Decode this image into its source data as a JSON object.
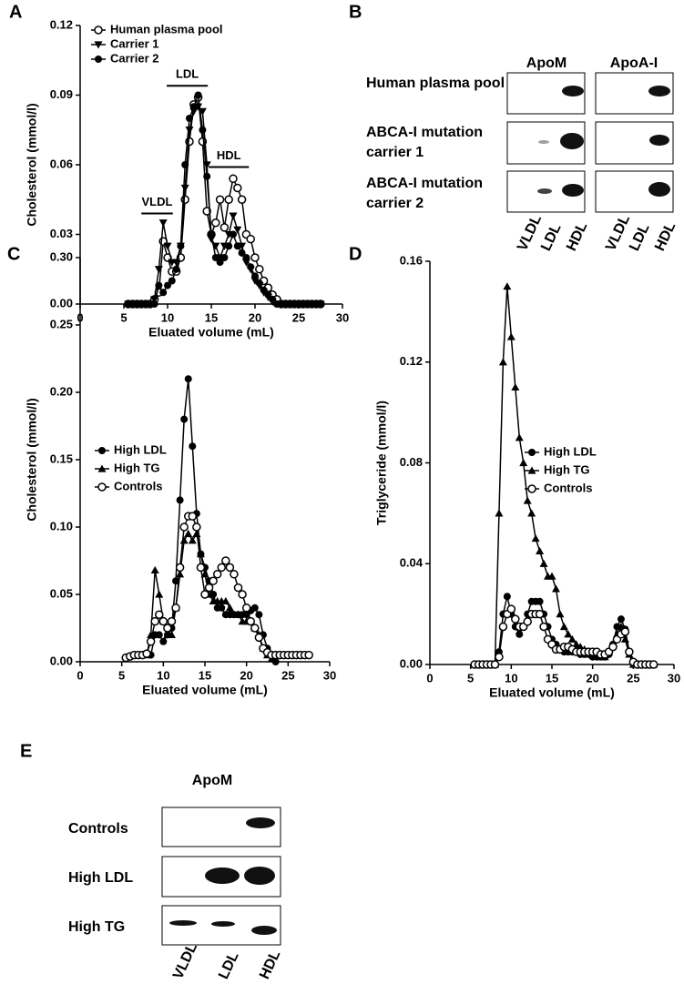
{
  "panel_labels": [
    "A",
    "B",
    "C",
    "D",
    "E"
  ],
  "chart_data": [
    {
      "type": "line",
      "xlabel": "Eluated volume (mL)",
      "ylabel": "Cholesterol (mmol/l)",
      "x": [
        5.5,
        6,
        6.5,
        7,
        7.5,
        8,
        8.5,
        9,
        9.5,
        10,
        10.5,
        11,
        11.5,
        12,
        12.5,
        13,
        13.5,
        14,
        14.5,
        15,
        15.5,
        16,
        16.5,
        17,
        17.5,
        18,
        18.5,
        19,
        19.5,
        20,
        20.5,
        21,
        21.5,
        22,
        22.5,
        23,
        23.5,
        24,
        24.5,
        25,
        25.5,
        26,
        26.5,
        27,
        27.5
      ],
      "xlim": [
        0,
        30
      ],
      "xticks": [
        0,
        5,
        10,
        15,
        20,
        25,
        30
      ],
      "ylim": [
        0,
        0.12
      ],
      "yticks": [
        {
          "value": 0,
          "label": "0.00"
        },
        0.03,
        0.06,
        0.09,
        0.12
      ],
      "annotations": [
        "VLDL",
        "LDL",
        "HDL"
      ],
      "series": [
        {
          "name": "Human plasma pool",
          "color": "#000000",
          "marker": "open-circle",
          "values": [
            0,
            0,
            0,
            0,
            0,
            0,
            0.002,
            0.005,
            0.027,
            0.02,
            0.014,
            0.014,
            0.02,
            0.045,
            0.07,
            0.086,
            0.089,
            0.07,
            0.04,
            0.03,
            0.035,
            0.045,
            0.033,
            0.045,
            0.054,
            0.05,
            0.045,
            0.03,
            0.028,
            0.02,
            0.015,
            0.01,
            0.007,
            0.004,
            0.002,
            0,
            0,
            0,
            0,
            0,
            0,
            0,
            0,
            0,
            0
          ]
        },
        {
          "name": "Carrier 1",
          "color": "#000000",
          "marker": "triangle-down",
          "values": [
            0,
            0,
            0,
            0,
            0,
            0,
            0.002,
            0.015,
            0.035,
            0.025,
            0.018,
            0.018,
            0.025,
            0.05,
            0.075,
            0.083,
            0.085,
            0.083,
            0.06,
            0.028,
            0.025,
            0.02,
            0.025,
            0.03,
            0.038,
            0.032,
            0.025,
            0.018,
            0.015,
            0.01,
            0.008,
            0.005,
            0.003,
            0.001,
            0,
            0,
            0,
            0,
            0,
            0,
            0,
            0,
            0,
            0,
            0
          ]
        },
        {
          "name": "Carrier 2",
          "color": "#000000",
          "marker": "circle",
          "values": [
            0,
            0,
            0,
            0,
            0,
            0,
            0,
            0.008,
            0.005,
            0.008,
            0.01,
            0.015,
            0.025,
            0.06,
            0.08,
            0.085,
            0.09,
            0.075,
            0.055,
            0.03,
            0.02,
            0.018,
            0.02,
            0.025,
            0.03,
            0.025,
            0.022,
            0.02,
            0.016,
            0.012,
            0.009,
            0.006,
            0.004,
            0.002,
            0,
            0,
            0,
            0,
            0,
            0,
            0,
            0,
            0,
            0,
            0
          ]
        }
      ]
    },
    {
      "type": "line",
      "xlabel": "Eluated volume (mL)",
      "ylabel": "Cholesterol (mmol/l)",
      "x": [
        5.5,
        6,
        6.5,
        7,
        7.5,
        8,
        8.5,
        9,
        9.5,
        10,
        10.5,
        11,
        11.5,
        12,
        12.5,
        13,
        13.5,
        14,
        14.5,
        15,
        15.5,
        16,
        16.5,
        17,
        17.5,
        18,
        18.5,
        19,
        19.5,
        20,
        20.5,
        21,
        21.5,
        22,
        22.5,
        23,
        23.5,
        24,
        24.5,
        25,
        25.5,
        26,
        26.5,
        27,
        27.5
      ],
      "xlim": [
        0,
        30
      ],
      "xticks": [
        0,
        5,
        10,
        15,
        20,
        25,
        30
      ],
      "ylim": [
        0,
        0.3
      ],
      "yticks": [
        {
          "value": 0,
          "label": "0.00"
        },
        0.05,
        {
          "value": 0.1,
          "label": "0.10"
        },
        0.15,
        {
          "value": 0.2,
          "label": "0.20"
        },
        0.25,
        {
          "value": 0.3,
          "label": "0.30"
        }
      ],
      "series": [
        {
          "name": "High LDL",
          "color": "#000000",
          "marker": "circle",
          "values": [
            null,
            null,
            null,
            null,
            null,
            null,
            0.005,
            0.02,
            0.02,
            0.015,
            0.02,
            0.025,
            0.06,
            0.12,
            0.18,
            0.21,
            0.16,
            0.11,
            0.08,
            0.07,
            0.06,
            0.05,
            0.04,
            0.04,
            0.035,
            0.035,
            0.035,
            0.035,
            0.035,
            0.035,
            0.038,
            0.04,
            0.035,
            0.02,
            0.01,
            0.005,
            0,
            null,
            null,
            null,
            null,
            null,
            null,
            null,
            null
          ]
        },
        {
          "name": "High TG",
          "color": "#000000",
          "marker": "triangle-up",
          "values": [
            null,
            null,
            null,
            null,
            null,
            0.005,
            0.02,
            0.068,
            0.05,
            0.03,
            0.02,
            0.02,
            0.04,
            0.065,
            0.09,
            0.095,
            0.09,
            0.095,
            0.08,
            0.065,
            0.05,
            0.045,
            0.045,
            0.045,
            0.045,
            0.04,
            0.035,
            0.035,
            0.03,
            0.03,
            0.03,
            0.025,
            0.02,
            0.01,
            0.005,
            0.002,
            null,
            null,
            null,
            null,
            null,
            null,
            null,
            null,
            null
          ]
        },
        {
          "name": "Controls",
          "color": "#000000",
          "marker": "open-circle",
          "values": [
            0.003,
            0.004,
            0.005,
            0.005,
            0.005,
            0.006,
            0.015,
            0.03,
            0.035,
            0.03,
            0.025,
            0.03,
            0.04,
            0.07,
            0.1,
            0.108,
            0.108,
            0.1,
            0.07,
            0.05,
            0.055,
            0.06,
            0.065,
            0.07,
            0.075,
            0.07,
            0.065,
            0.055,
            0.05,
            0.04,
            0.03,
            0.025,
            0.018,
            0.01,
            0.007,
            0.005,
            0.005,
            0.005,
            0.005,
            0.005,
            0.005,
            0.005,
            0.005,
            0.005,
            0.005
          ]
        }
      ]
    },
    {
      "type": "line",
      "xlabel": "Eluated volume (mL)",
      "ylabel": "Triglyceride (mmol/l)",
      "x": [
        5.5,
        6,
        6.5,
        7,
        7.5,
        8,
        8.5,
        9,
        9.5,
        10,
        10.5,
        11,
        11.5,
        12,
        12.5,
        13,
        13.5,
        14,
        14.5,
        15,
        15.5,
        16,
        16.5,
        17,
        17.5,
        18,
        18.5,
        19,
        19.5,
        20,
        20.5,
        21,
        21.5,
        22,
        22.5,
        23,
        23.5,
        24,
        24.5,
        25,
        25.5,
        26,
        26.5,
        27,
        27.5
      ],
      "xlim": [
        0,
        30
      ],
      "xticks": [
        0,
        5,
        10,
        15,
        20,
        25,
        30
      ],
      "ylim": [
        0,
        0.16
      ],
      "yticks": [
        {
          "value": 0,
          "label": "0.00"
        },
        0.04,
        0.08,
        0.12,
        0.16
      ],
      "series": [
        {
          "name": "High LDL",
          "color": "#000000",
          "marker": "circle",
          "values": [
            0,
            0,
            0,
            0,
            0,
            0,
            0.005,
            0.02,
            0.027,
            0.02,
            0.015,
            0.012,
            0.015,
            0.02,
            0.025,
            0.025,
            0.025,
            0.02,
            0.015,
            0.01,
            0.008,
            0.006,
            0.005,
            0.005,
            0.005,
            0.005,
            0.004,
            0.004,
            0.004,
            0.003,
            0.003,
            0.003,
            0.003,
            0.004,
            0.008,
            0.015,
            0.018,
            0.014,
            0.005,
            0.001,
            0,
            0,
            0,
            0,
            0
          ]
        },
        {
          "name": "High TG",
          "color": "#000000",
          "marker": "triangle-up",
          "values": [
            0,
            0,
            0,
            0,
            0,
            0,
            0.06,
            0.12,
            0.15,
            0.13,
            0.11,
            0.09,
            0.08,
            0.065,
            0.06,
            0.05,
            0.045,
            0.04,
            0.035,
            0.035,
            0.03,
            0.02,
            0.015,
            0.012,
            0.01,
            0.008,
            0.007,
            0.006,
            0.005,
            0.004,
            0.004,
            0.003,
            0.003,
            0.005,
            0.008,
            0.012,
            0.015,
            0.01,
            0.004,
            0,
            0,
            0,
            0,
            0,
            0
          ]
        },
        {
          "name": "Controls",
          "color": "#000000",
          "marker": "open-circle",
          "values": [
            0,
            0,
            0,
            0,
            0,
            0,
            0.003,
            0.015,
            0.02,
            0.022,
            0.018,
            0.015,
            0.015,
            0.017,
            0.02,
            0.02,
            0.02,
            0.015,
            0.01,
            0.008,
            0.006,
            0.006,
            0.007,
            0.007,
            0.006,
            0.005,
            0.005,
            0.005,
            0.005,
            0.005,
            0.005,
            0.004,
            0.004,
            0.005,
            0.007,
            0.01,
            0.012,
            0.013,
            0.005,
            0.001,
            0,
            0,
            0,
            0,
            0
          ]
        }
      ]
    }
  ],
  "blots": [
    {
      "columns": [
        "ApoM",
        "ApoA-I"
      ],
      "rows": [
        "Human plasma pool",
        "ABCA-I mutation carrier 1",
        "ABCA-I mutation carrier 2"
      ],
      "lanes": [
        "VLDL",
        "LDL",
        "HDL"
      ]
    },
    {
      "columns": [
        "ApoM"
      ],
      "rows": [
        "Controls",
        "High LDL",
        "High TG"
      ],
      "lanes": [
        "VLDL",
        "LDL",
        "HDL"
      ]
    }
  ]
}
